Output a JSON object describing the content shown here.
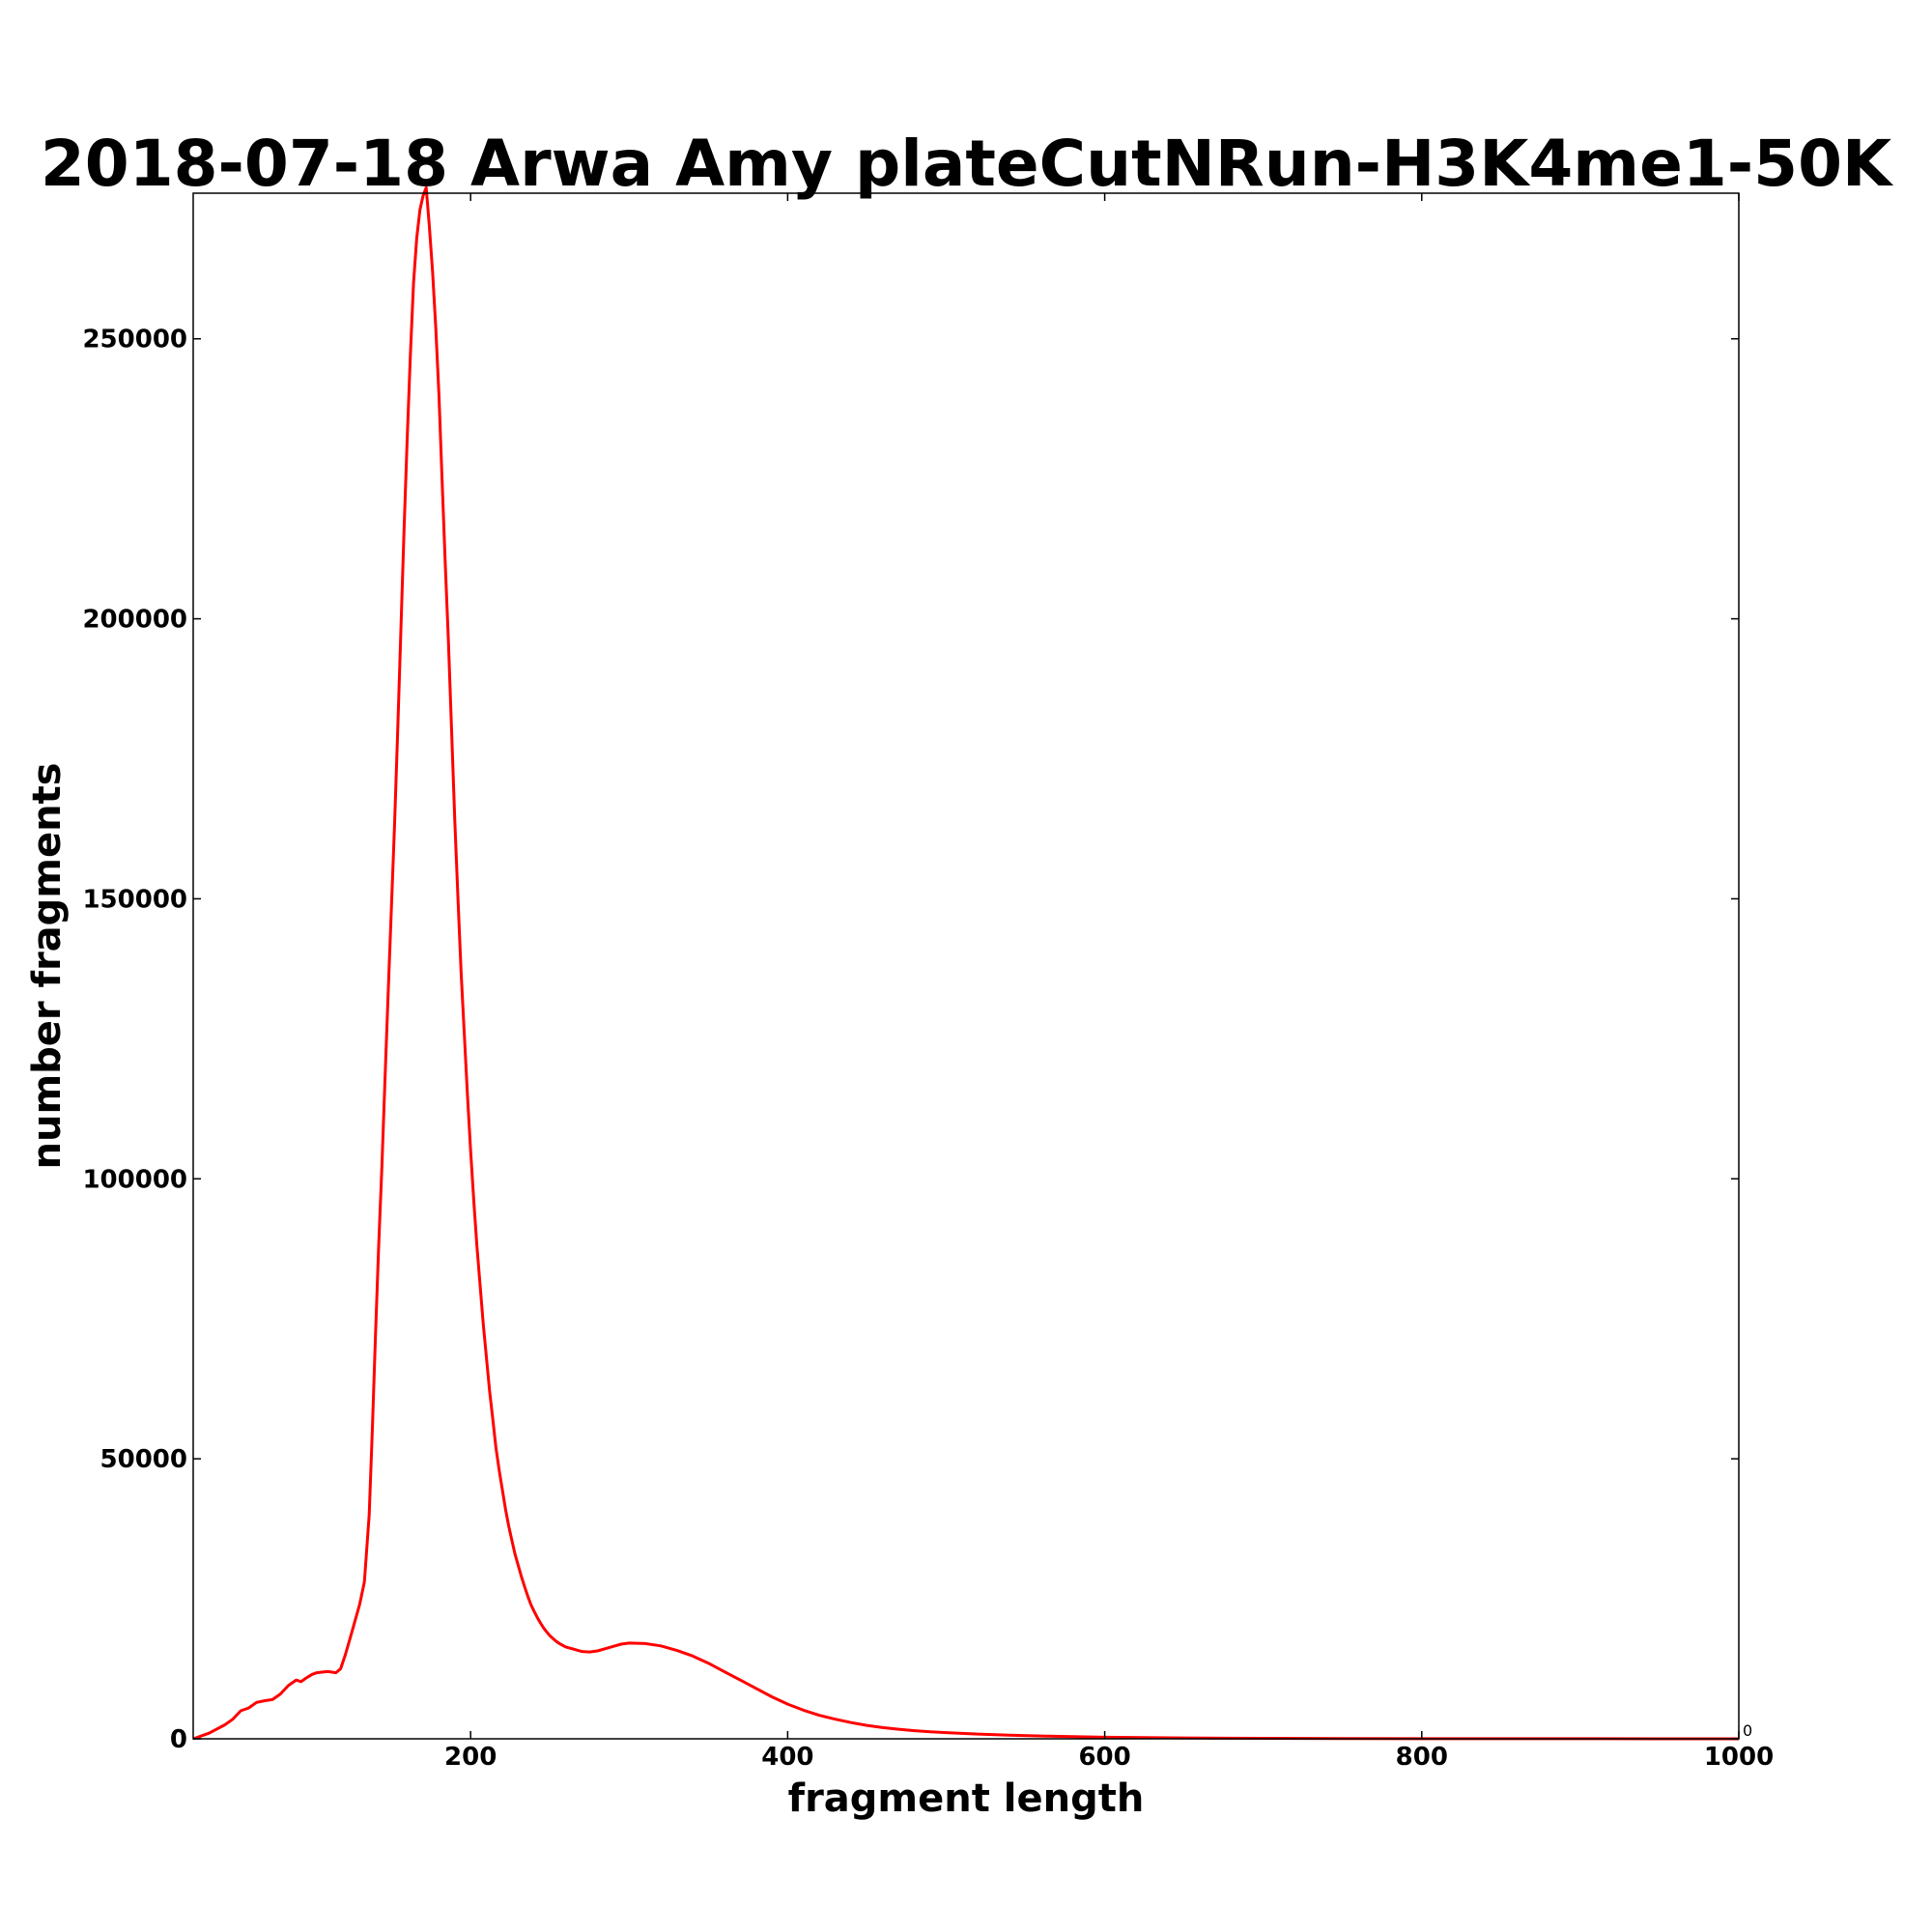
{
  "chart_data": {
    "type": "line",
    "title": "2018-07-18 Arwa Amy plateCutNRun-H3K4me1-50K",
    "xlabel": "fragment length",
    "ylabel": "number fragments",
    "xlim": [
      25,
      1000
    ],
    "ylim": [
      0,
      276000
    ],
    "xticks": [
      200,
      400,
      600,
      800,
      1000
    ],
    "yticks": [
      0,
      50000,
      100000,
      150000,
      200000,
      250000
    ],
    "right_axis_label": "0",
    "grid": false,
    "legend": "none",
    "line_color": "#ff0000",
    "series": [
      {
        "x": [
          25,
          35,
          45,
          50,
          55,
          60,
          65,
          70,
          75,
          80,
          85,
          90,
          93,
          96,
          100,
          103,
          106,
          110,
          115,
          118,
          121,
          124,
          127,
          130,
          133,
          136,
          138,
          140,
          142,
          144,
          146,
          148,
          150,
          152,
          154,
          156,
          158,
          160,
          162,
          164,
          166,
          168,
          170,
          172,
          174,
          176,
          178,
          180,
          182,
          184,
          186,
          188,
          190,
          192,
          194,
          196,
          198,
          200,
          202,
          204,
          206,
          208,
          210,
          212,
          214,
          216,
          218,
          220,
          222,
          224,
          226,
          228,
          230,
          232,
          234,
          236,
          238,
          240,
          242,
          244,
          246,
          248,
          250,
          252,
          254,
          256,
          258,
          260,
          265,
          270,
          275,
          280,
          285,
          290,
          295,
          300,
          310,
          320,
          330,
          340,
          350,
          360,
          370,
          380,
          390,
          400,
          410,
          420,
          430,
          440,
          450,
          460,
          470,
          480,
          490,
          500,
          520,
          540,
          560,
          580,
          600,
          650,
          700,
          750,
          800,
          850,
          900,
          950,
          1000
        ],
        "values": [
          0,
          1000,
          2500,
          3500,
          5000,
          5500,
          6500,
          6800,
          7000,
          8000,
          9500,
          10500,
          10200,
          10800,
          11500,
          11800,
          11900,
          12000,
          11800,
          12500,
          15000,
          18000,
          21000,
          24000,
          28000,
          40000,
          55000,
          72000,
          88000,
          102000,
          118000,
          133000,
          148000,
          163000,
          180000,
          198000,
          216000,
          232000,
          247000,
          260000,
          268000,
          273000,
          275500,
          277000,
          270000,
          262000,
          252000,
          240000,
          225000,
          210000,
          196000,
          180000,
          164000,
          150000,
          137000,
          126000,
          115000,
          105000,
          96000,
          88000,
          81000,
          74000,
          68000,
          62000,
          57000,
          52000,
          48000,
          44500,
          41000,
          38000,
          35500,
          33000,
          31000,
          29000,
          27200,
          25500,
          24000,
          22800,
          21700,
          20700,
          19800,
          19100,
          18400,
          17900,
          17400,
          17000,
          16700,
          16400,
          16000,
          15600,
          15500,
          15700,
          16100,
          16500,
          16900,
          17100,
          17000,
          16600,
          15800,
          14800,
          13500,
          12000,
          10500,
          9000,
          7500,
          6200,
          5100,
          4200,
          3500,
          2900,
          2400,
          2000,
          1700,
          1450,
          1250,
          1100,
          850,
          650,
          500,
          380,
          280,
          150,
          80,
          45,
          25,
          15,
          10,
          5,
          0
        ]
      }
    ]
  }
}
